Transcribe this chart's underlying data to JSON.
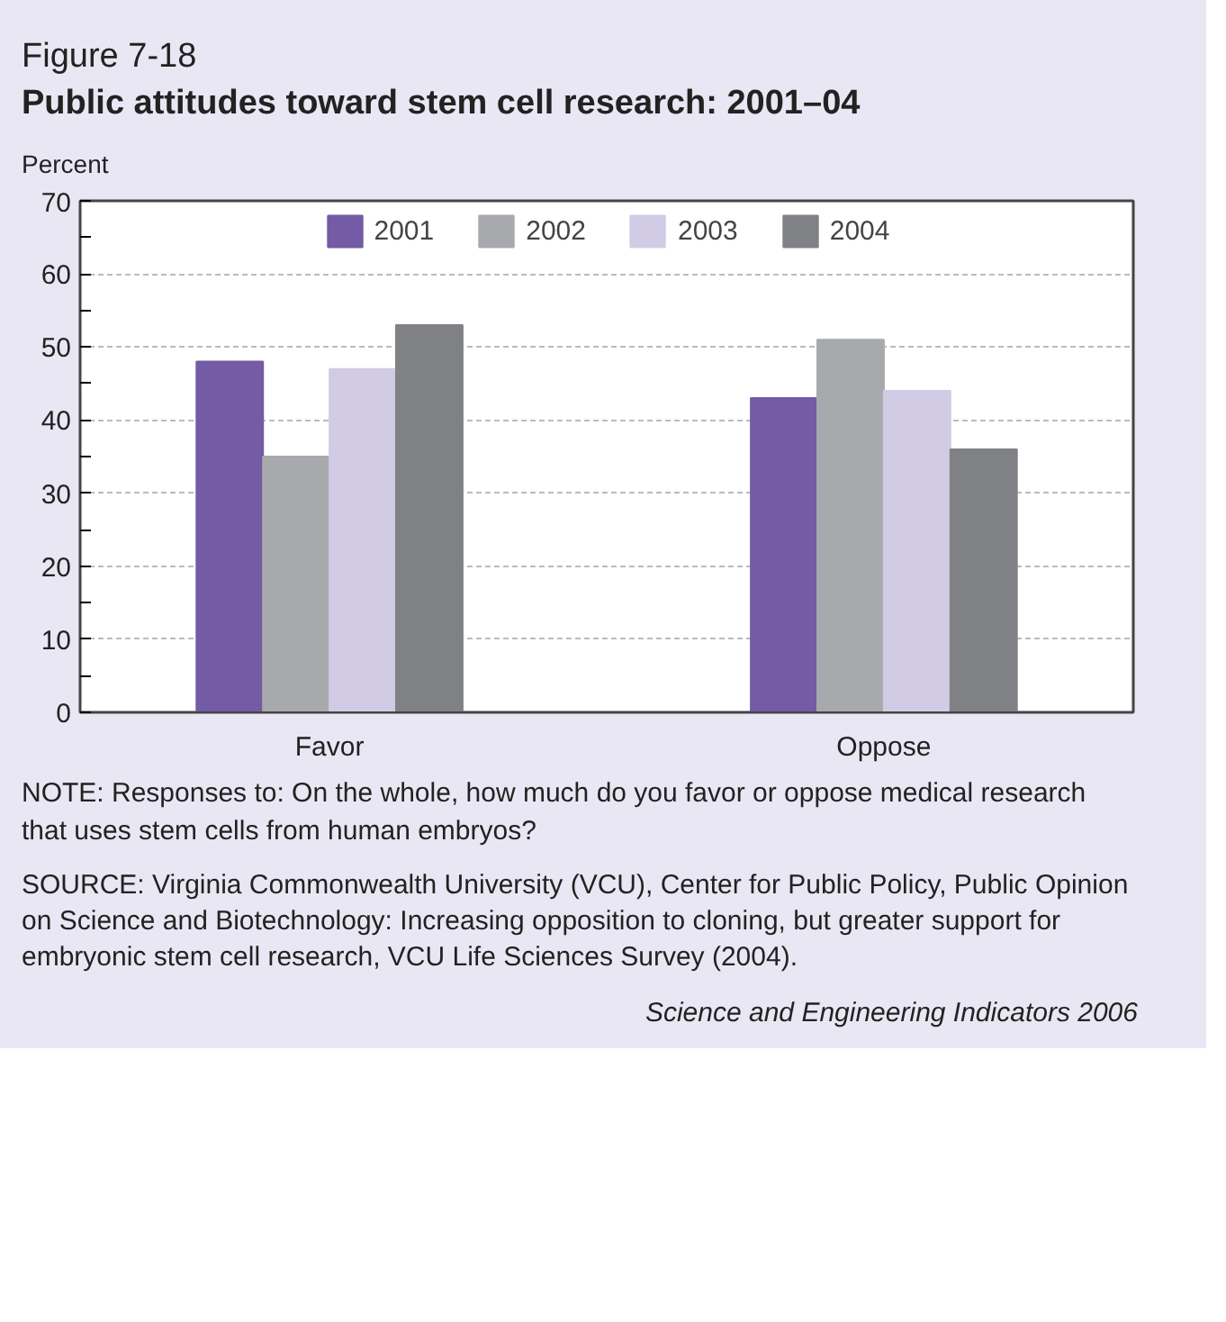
{
  "chart_data": {
    "type": "bar",
    "title": "Figure 7-18",
    "subtitle": "Public attitudes toward stem cell research: 2001–04",
    "ylabel": "Percent",
    "categories": [
      "Favor",
      "Oppose"
    ],
    "series": [
      {
        "name": "2001",
        "color": "#735ba5",
        "values": [
          48,
          43
        ]
      },
      {
        "name": "2002",
        "color": "#a8a9ac",
        "values": [
          35,
          51
        ]
      },
      {
        "name": "2003",
        "color": "#d2cbe5",
        "values": [
          47,
          44
        ]
      },
      {
        "name": "2004",
        "color": "#808184",
        "values": [
          53,
          36
        ]
      }
    ],
    "ylim": [
      0,
      70
    ],
    "yticks": [
      0,
      10,
      20,
      30,
      40,
      50,
      60,
      70
    ],
    "grid": "y",
    "legend": "top",
    "annotations": [
      "NOTE: Responses to: On the whole, how much do you favor or oppose medical research that uses stem cells from human embryos?",
      "SOURCE: Virginia Commonwealth University (VCU), Center for Public Policy, Public Opinion on Science and Biotechnology: Increasing opposition to cloning, but greater support for embryonic stem cell research, VCU Life Sciences Survey (2004).",
      "Science and Engineering Indicators 2006"
    ]
  }
}
